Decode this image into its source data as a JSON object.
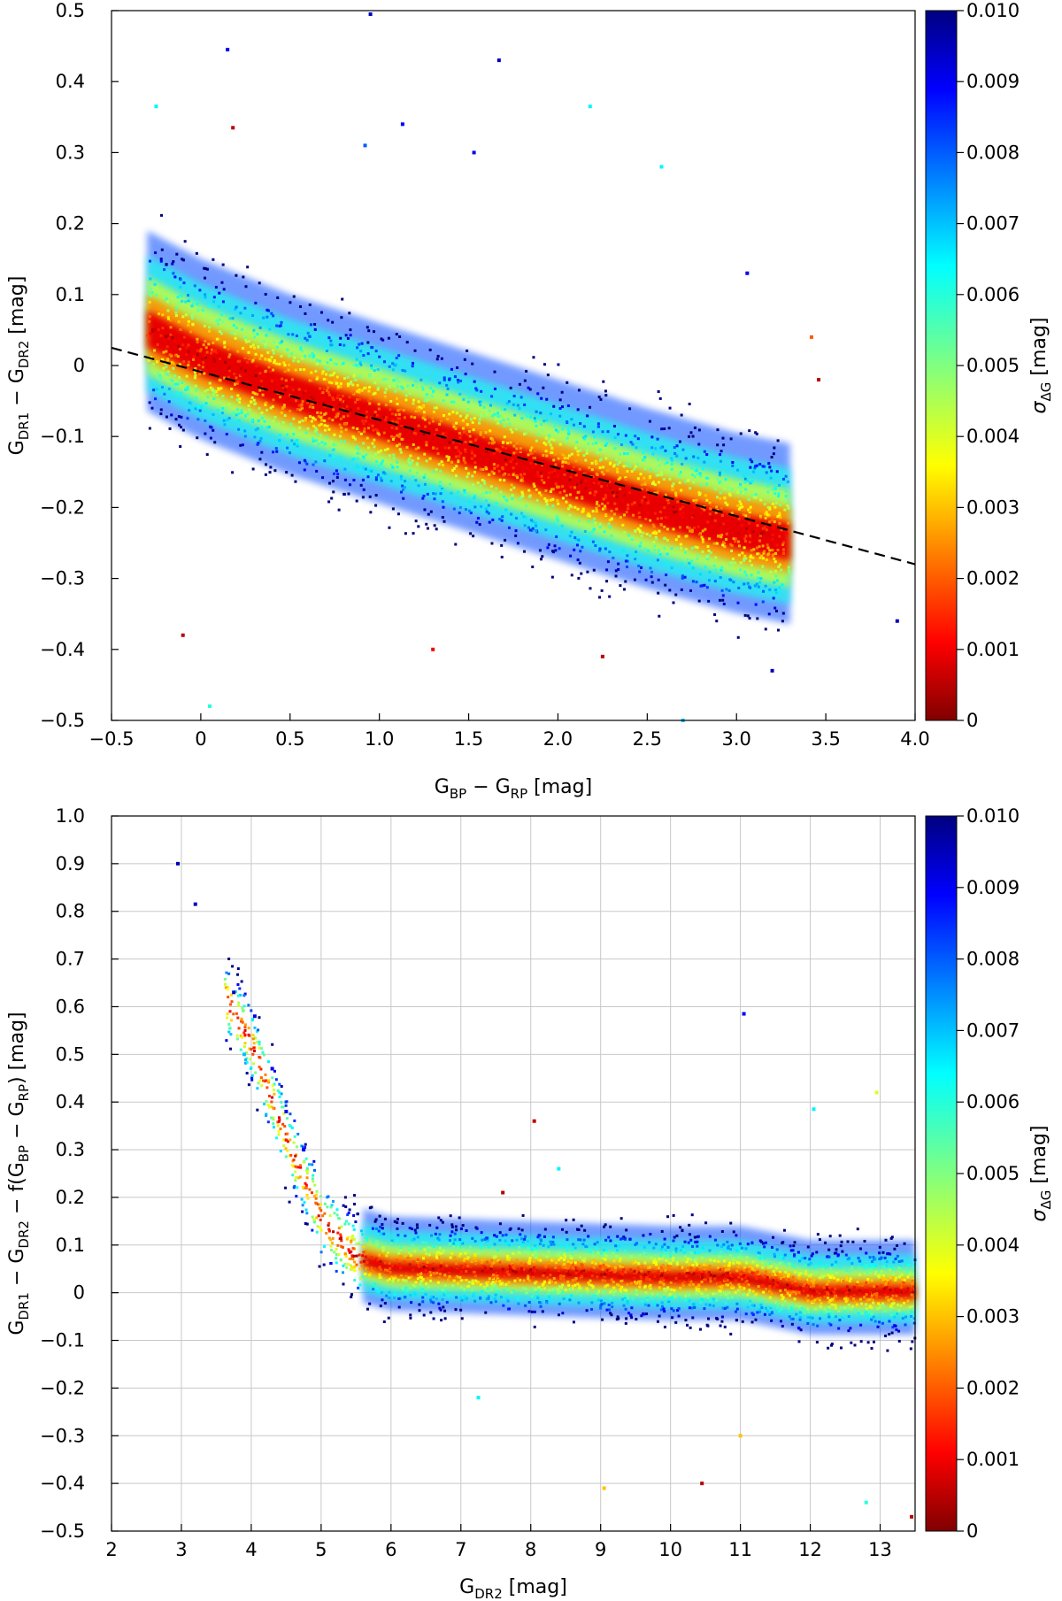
{
  "chart_data": [
    {
      "type": "scatter",
      "title": "",
      "xlabel": {
        "main": "G",
        "sub1": "BP",
        "mid": " − G",
        "sub2": "RP",
        "unit": " [mag]"
      },
      "ylabel": {
        "main": "G",
        "sub1": "DR1",
        "mid": " − G",
        "sub2": "DR2",
        "unit": " [mag]"
      },
      "xlim": [
        -0.5,
        4.0
      ],
      "ylim": [
        -0.5,
        0.5
      ],
      "x_ticks": [
        -0.5,
        0,
        0.5,
        1.0,
        1.5,
        2.0,
        2.5,
        3.0,
        3.5,
        4.0
      ],
      "x_tick_labels": [
        "−0.5",
        "0",
        "0.5",
        "1.0",
        "1.5",
        "2.0",
        "2.5",
        "3.0",
        "3.5",
        "4.0"
      ],
      "y_ticks": [
        -0.5,
        -0.4,
        -0.3,
        -0.2,
        -0.1,
        0,
        0.1,
        0.2,
        0.3,
        0.4,
        0.5
      ],
      "y_tick_labels": [
        "−0.5",
        "−0.4",
        "−0.3",
        "−0.2",
        "−0.1",
        "0",
        "0.1",
        "0.2",
        "0.3",
        "0.4",
        "0.5"
      ],
      "grid": false,
      "fit_line": {
        "style": "dashed",
        "color": "#000000",
        "x": [
          -0.5,
          4.0
        ],
        "y": [
          0.025,
          -0.28
        ]
      },
      "density_ridge": {
        "x": [
          -0.3,
          0.0,
          0.5,
          1.0,
          1.5,
          2.0,
          2.5,
          3.0,
          3.3
        ],
        "y": [
          0.04,
          0.0,
          -0.05,
          -0.09,
          -0.13,
          -0.17,
          -0.21,
          -0.245,
          -0.26
        ]
      },
      "sample_points": [
        {
          "x": 0.95,
          "y": 0.495,
          "c": 0.0095
        },
        {
          "x": 0.15,
          "y": 0.445,
          "c": 0.009
        },
        {
          "x": 1.67,
          "y": 0.43,
          "c": 0.0095
        },
        {
          "x": -0.25,
          "y": 0.365,
          "c": 0.0065
        },
        {
          "x": 2.18,
          "y": 0.365,
          "c": 0.0065
        },
        {
          "x": 0.18,
          "y": 0.335,
          "c": 0.0005
        },
        {
          "x": 1.13,
          "y": 0.34,
          "c": 0.009
        },
        {
          "x": 1.53,
          "y": 0.3,
          "c": 0.009
        },
        {
          "x": 2.58,
          "y": 0.28,
          "c": 0.0065
        },
        {
          "x": 0.92,
          "y": 0.31,
          "c": 0.008
        },
        {
          "x": 3.06,
          "y": 0.13,
          "c": 0.009
        },
        {
          "x": 3.42,
          "y": 0.04,
          "c": 0.002
        },
        {
          "x": 3.46,
          "y": -0.02,
          "c": 0.0005
        },
        {
          "x": -0.1,
          "y": -0.38,
          "c": 0.0005
        },
        {
          "x": 0.05,
          "y": -0.48,
          "c": 0.006
        },
        {
          "x": 1.3,
          "y": -0.4,
          "c": 0.001
        },
        {
          "x": 2.25,
          "y": -0.41,
          "c": 0.0005
        },
        {
          "x": 2.7,
          "y": -0.5,
          "c": 0.007
        },
        {
          "x": 3.2,
          "y": -0.43,
          "c": 0.0095
        },
        {
          "x": 3.9,
          "y": -0.36,
          "c": 0.0095
        }
      ],
      "colorbar": {
        "label": "σ",
        "label_sub": "ΔG",
        "label_unit": " [mag]",
        "range": [
          0,
          0.01
        ],
        "colormap": "jet_reversed",
        "tick_labels": [
          "0",
          "0.001",
          "0.002",
          "0.003",
          "0.004",
          "0.005",
          "0.006",
          "0.007",
          "0.008",
          "0.009",
          "0.010"
        ]
      }
    },
    {
      "type": "scatter",
      "title": "",
      "xlabel": {
        "main": "G",
        "sub1": "DR2",
        "mid": "",
        "sub2": "",
        "unit": " [mag]"
      },
      "ylabel": {
        "main": "G",
        "sub1": "DR1",
        "mid": " − G",
        "sub2": "DR2",
        "unit": " − f(G",
        "sub3": "BP",
        "mid2": " − G",
        "sub4": "RP",
        "unit2": ") [mag]"
      },
      "xlim": [
        2,
        13.5
      ],
      "ylim": [
        -0.5,
        1.0
      ],
      "x_ticks": [
        2,
        3,
        4,
        5,
        6,
        7,
        8,
        9,
        10,
        11,
        12,
        13
      ],
      "x_tick_labels": [
        "2",
        "3",
        "4",
        "5",
        "6",
        "7",
        "8",
        "9",
        "10",
        "11",
        "12",
        "13"
      ],
      "y_ticks": [
        -0.5,
        -0.4,
        -0.3,
        -0.2,
        -0.1,
        0,
        0.1,
        0.2,
        0.3,
        0.4,
        0.5,
        0.6,
        0.7,
        0.8,
        0.9,
        1.0
      ],
      "y_tick_labels": [
        "−0.5",
        "−0.4",
        "−0.3",
        "−0.2",
        "−0.1",
        "0",
        "0.1",
        "0.2",
        "0.3",
        "0.4",
        "0.5",
        "0.6",
        "0.7",
        "0.8",
        "0.9",
        "1.0"
      ],
      "grid": true,
      "trend_curve": {
        "x": [
          3.6,
          4.0,
          4.5,
          5.0,
          5.5,
          6.0,
          8.0,
          10.0,
          11.0,
          12.0,
          13.5
        ],
        "y": [
          0.62,
          0.52,
          0.32,
          0.15,
          0.07,
          0.05,
          0.04,
          0.03,
          0.03,
          0.0,
          0.0
        ]
      },
      "sample_points": [
        {
          "x": 2.95,
          "y": 0.9,
          "c": 0.0095
        },
        {
          "x": 3.2,
          "y": 0.815,
          "c": 0.0095
        },
        {
          "x": 3.75,
          "y": 0.63,
          "c": 0.0095
        },
        {
          "x": 4.05,
          "y": 0.58,
          "c": 0.009
        },
        {
          "x": 3.9,
          "y": 0.5,
          "c": 0.007
        },
        {
          "x": 4.3,
          "y": 0.47,
          "c": 0.009
        },
        {
          "x": 4.5,
          "y": 0.38,
          "c": 0.009
        },
        {
          "x": 4.75,
          "y": 0.3,
          "c": 0.009
        },
        {
          "x": 11.05,
          "y": 0.585,
          "c": 0.009
        },
        {
          "x": 8.05,
          "y": 0.36,
          "c": 0.0005
        },
        {
          "x": 12.05,
          "y": 0.385,
          "c": 0.0065
        },
        {
          "x": 12.95,
          "y": 0.42,
          "c": 0.004
        },
        {
          "x": 7.6,
          "y": 0.21,
          "c": 0.0005
        },
        {
          "x": 8.4,
          "y": 0.26,
          "c": 0.0065
        },
        {
          "x": 10.45,
          "y": -0.4,
          "c": 0.0005
        },
        {
          "x": 11.0,
          "y": -0.3,
          "c": 0.003
        },
        {
          "x": 12.8,
          "y": -0.44,
          "c": 0.006
        },
        {
          "x": 13.45,
          "y": -0.47,
          "c": 0.0005
        },
        {
          "x": 9.05,
          "y": -0.41,
          "c": 0.003
        },
        {
          "x": 7.25,
          "y": -0.22,
          "c": 0.0065
        }
      ],
      "colorbar": {
        "label": "σ",
        "label_sub": "ΔG",
        "label_unit": " [mag]",
        "range": [
          0,
          0.01
        ],
        "colormap": "jet_reversed",
        "tick_labels": [
          "0",
          "0.001",
          "0.002",
          "0.003",
          "0.004",
          "0.005",
          "0.006",
          "0.007",
          "0.008",
          "0.009",
          "0.010"
        ]
      }
    }
  ]
}
